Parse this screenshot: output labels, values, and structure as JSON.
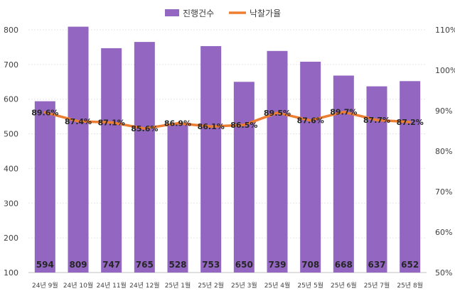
{
  "chart_data": {
    "type": "bar",
    "categories": [
      "24년 9월",
      "24년 10월",
      "24년 11월",
      "24년 12월",
      "25년 1월",
      "25년 2월",
      "25년 3월",
      "25년 4월",
      "25년 5월",
      "25년 6월",
      "25년 7월",
      "25년 8월"
    ],
    "series": [
      {
        "name": "진행건수",
        "type": "bar",
        "axis": "left",
        "color": "#9366C1",
        "values": [
          594,
          809,
          747,
          765,
          528,
          753,
          650,
          739,
          708,
          668,
          637,
          652
        ],
        "labels": [
          "594",
          "809",
          "747",
          "765",
          "528",
          "753",
          "650",
          "739",
          "708",
          "668",
          "637",
          "652"
        ]
      },
      {
        "name": "낙찰가율",
        "type": "line",
        "axis": "right",
        "color": "#ED7D31",
        "values": [
          89.6,
          87.4,
          87.1,
          85.6,
          86.9,
          86.1,
          86.5,
          89.5,
          87.6,
          89.7,
          87.7,
          87.2
        ],
        "labels": [
          "89.6%",
          "87.4%",
          "87.1%",
          "85.6%",
          "86.9%",
          "86.1%",
          "86.5%",
          "89.5%",
          "87.6%",
          "89.7%",
          "87.7%",
          "87.2%"
        ]
      }
    ],
    "y_left": {
      "min": 100,
      "max": 800,
      "ticks": [
        "100",
        "200",
        "300",
        "400",
        "500",
        "600",
        "700",
        "800"
      ]
    },
    "y_right": {
      "min": 50,
      "max": 110,
      "ticks": [
        "50%",
        "60%",
        "70%",
        "80%",
        "90%",
        "100%",
        "110%"
      ]
    },
    "legend": {
      "position": "top"
    },
    "grid": true
  }
}
